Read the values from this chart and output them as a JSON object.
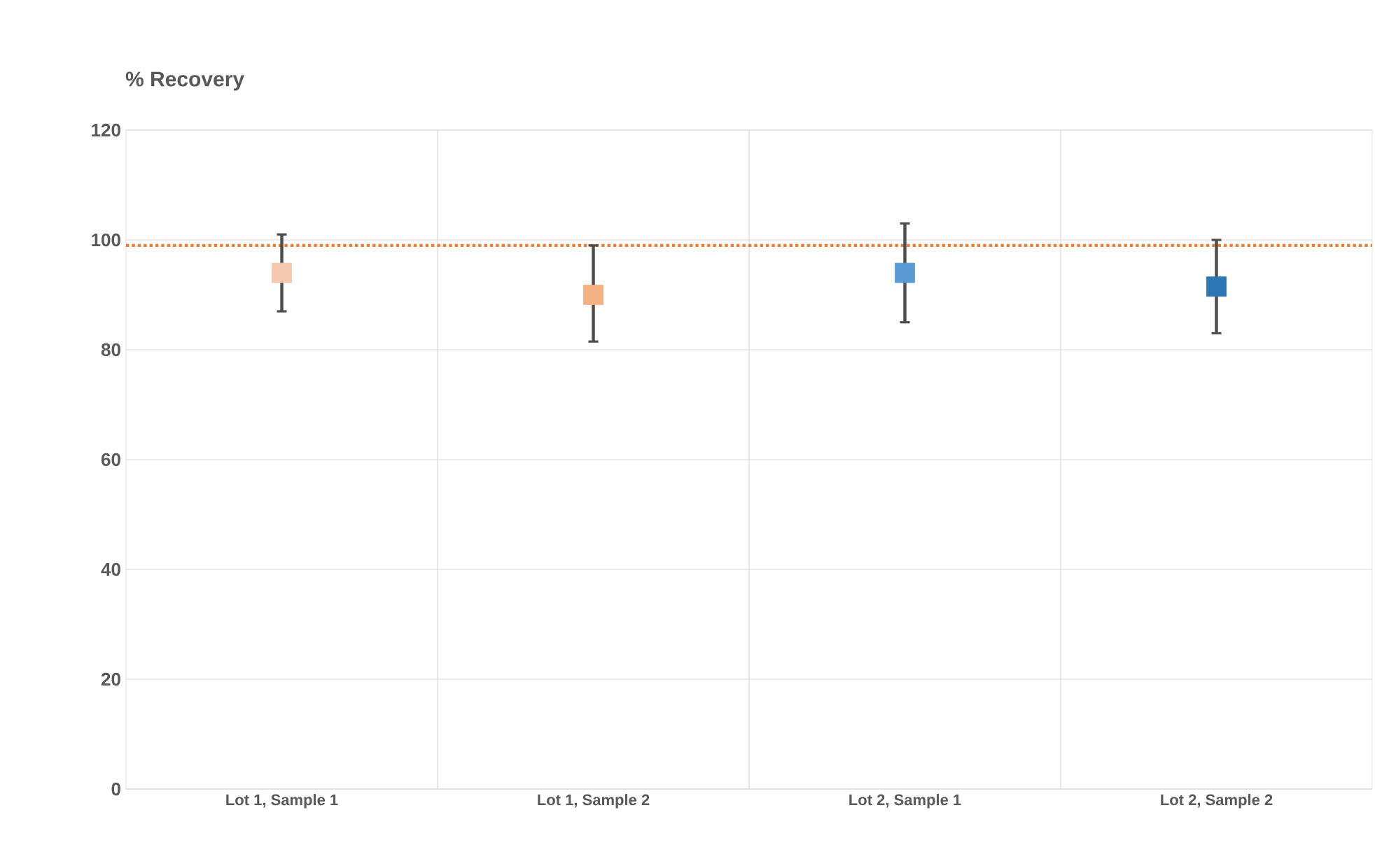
{
  "chart_data": {
    "type": "scatter",
    "title": "% Recovery",
    "categories": [
      "Lot 1, Sample 1",
      "Lot 1, Sample 2",
      "Lot 2, Sample 1",
      "Lot 2, Sample 2"
    ],
    "values": [
      94,
      90,
      94,
      91.5
    ],
    "errors": [
      [
        87,
        101
      ],
      [
        81.5,
        99
      ],
      [
        85,
        103
      ],
      [
        83,
        100
      ]
    ],
    "colors": [
      "#f4c7ae",
      "#f4b183",
      "#5b9bd5",
      "#2e75b6"
    ],
    "marker": "square",
    "ylim": [
      0,
      120
    ],
    "yticks": [
      0,
      20,
      40,
      60,
      80,
      100,
      120
    ],
    "grid": true,
    "ref_lines": [
      {
        "axis": "y",
        "value": 99,
        "color": "#ed7d31",
        "line_style": "dotted"
      }
    ]
  }
}
